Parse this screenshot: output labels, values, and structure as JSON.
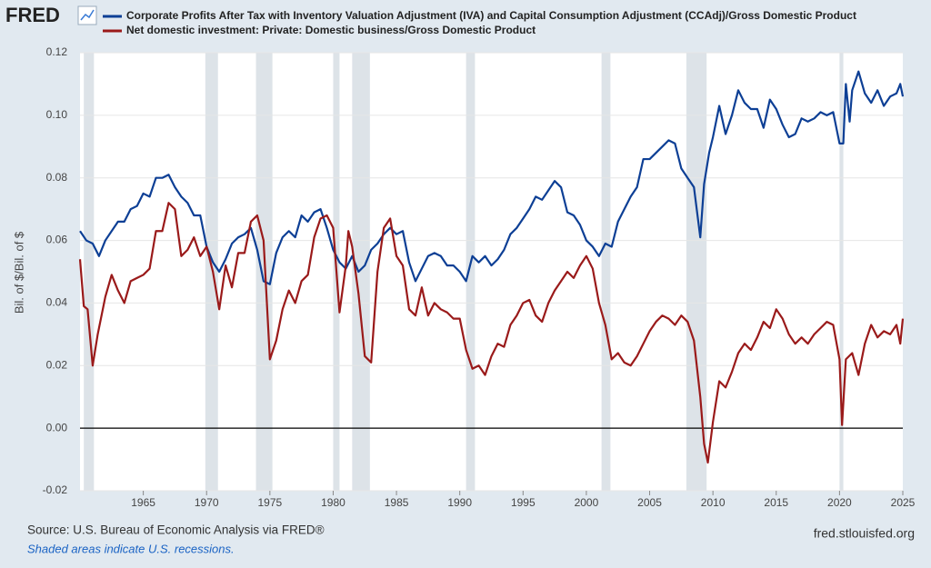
{
  "chart_data": {
    "type": "line",
    "logo": "FRED",
    "y_label": "Bil. of $/Bil. of $",
    "source": "Source: U.S. Bureau of Economic Analysis via FRED®",
    "note": "Shaded areas indicate U.S. recessions.",
    "site": "fred.stlouisfed.org",
    "xlim": [
      1960,
      2025
    ],
    "ylim": [
      -0.02,
      0.12
    ],
    "xticks": [
      1965,
      1970,
      1975,
      1980,
      1985,
      1990,
      1995,
      2000,
      2005,
      2010,
      2015,
      2020,
      2025
    ],
    "yticks": [
      -0.02,
      {
        "value": 0,
        "label": "0.00"
      },
      0.02,
      0.04,
      0.06,
      0.08,
      {
        "value": 0.1,
        "label": "0.10"
      },
      0.12
    ],
    "grid": true,
    "zero_line_color": "#000000",
    "recession_color": "#dde3e8",
    "recessions": [
      [
        1960.3,
        1961.1
      ],
      [
        1969.9,
        1970.9
      ],
      [
        1973.9,
        1975.2
      ],
      [
        1980.0,
        1980.5
      ],
      [
        1981.5,
        1982.9
      ],
      [
        1990.5,
        1991.2
      ],
      [
        2001.2,
        2001.9
      ],
      [
        2007.9,
        2009.5
      ],
      [
        2020.0,
        2020.3
      ]
    ],
    "series": [
      {
        "name": "Corporate Profits After Tax with Inventory Valuation Adjustment (IVA) and Capital Consumption Adjustment (CCAdj)/Gross Domestic Product",
        "color": "#0d3f95",
        "x": [
          1960,
          1960.5,
          1961,
          1961.5,
          1962,
          1963,
          1963.5,
          1964,
          1964.5,
          1965,
          1965.5,
          1966,
          1966.5,
          1967,
          1967.5,
          1968,
          1968.5,
          1969,
          1969.5,
          1970,
          1970.5,
          1971,
          1971.5,
          1972,
          1972.5,
          1973,
          1973.5,
          1974,
          1974.5,
          1975,
          1975.5,
          1976,
          1976.5,
          1977,
          1977.5,
          1978,
          1978.5,
          1979,
          1979.5,
          1980,
          1980.5,
          1981,
          1981.5,
          1982,
          1982.5,
          1983,
          1983.5,
          1984,
          1984.5,
          1985,
          1985.5,
          1986,
          1986.5,
          1987,
          1987.5,
          1988,
          1988.5,
          1989,
          1989.5,
          1990,
          1990.5,
          1991,
          1991.5,
          1992,
          1992.5,
          1993,
          1993.5,
          1994,
          1994.5,
          1995,
          1995.5,
          1996,
          1996.5,
          1997,
          1997.5,
          1998,
          1998.5,
          1999,
          1999.5,
          2000,
          2000.5,
          2001,
          2001.5,
          2002,
          2002.5,
          2003,
          2003.5,
          2004,
          2004.5,
          2005,
          2005.5,
          2006,
          2006.5,
          2007,
          2007.5,
          2008,
          2008.5,
          2009,
          2009.3,
          2009.7,
          2010,
          2010.5,
          2011,
          2011.5,
          2012,
          2012.5,
          2013,
          2013.5,
          2014,
          2014.5,
          2015,
          2015.5,
          2016,
          2016.5,
          2017,
          2017.5,
          2018,
          2018.5,
          2019,
          2019.5,
          2020,
          2020.3,
          2020.5,
          2020.8,
          2021,
          2021.5,
          2022,
          2022.5,
          2023,
          2023.5,
          2024,
          2024.5,
          2024.8,
          2025
        ],
        "values": [
          0.063,
          0.06,
          0.059,
          0.055,
          0.06,
          0.066,
          0.066,
          0.07,
          0.071,
          0.075,
          0.074,
          0.08,
          0.08,
          0.081,
          0.077,
          0.074,
          0.072,
          0.068,
          0.068,
          0.058,
          0.053,
          0.05,
          0.054,
          0.059,
          0.061,
          0.062,
          0.064,
          0.057,
          0.047,
          0.046,
          0.056,
          0.061,
          0.063,
          0.061,
          0.068,
          0.066,
          0.069,
          0.07,
          0.064,
          0.057,
          0.053,
          0.051,
          0.055,
          0.05,
          0.052,
          0.057,
          0.059,
          0.062,
          0.064,
          0.062,
          0.063,
          0.053,
          0.047,
          0.051,
          0.055,
          0.056,
          0.055,
          0.052,
          0.052,
          0.05,
          0.047,
          0.055,
          0.053,
          0.055,
          0.052,
          0.054,
          0.057,
          0.062,
          0.064,
          0.067,
          0.07,
          0.074,
          0.073,
          0.076,
          0.079,
          0.077,
          0.069,
          0.068,
          0.065,
          0.06,
          0.058,
          0.055,
          0.059,
          0.058,
          0.066,
          0.07,
          0.074,
          0.077,
          0.086,
          0.086,
          0.088,
          0.09,
          0.092,
          0.091,
          0.083,
          0.08,
          0.077,
          0.061,
          0.078,
          0.088,
          0.093,
          0.103,
          0.094,
          0.1,
          0.108,
          0.104,
          0.102,
          0.102,
          0.096,
          0.105,
          0.102,
          0.097,
          0.093,
          0.094,
          0.099,
          0.098,
          0.099,
          0.101,
          0.1,
          0.101,
          0.091,
          0.091,
          0.11,
          0.098,
          0.108,
          0.114,
          0.107,
          0.104,
          0.108,
          0.103,
          0.106,
          0.107,
          0.11,
          0.106
        ]
      },
      {
        "name": "Net domestic investment: Private: Domestic business/Gross Domestic Product",
        "color": "#9a1a1a",
        "x": [
          1960,
          1960.3,
          1960.6,
          1961,
          1961.4,
          1962,
          1962.5,
          1963,
          1963.5,
          1964,
          1964.5,
          1965,
          1965.5,
          1966,
          1966.5,
          1967,
          1967.5,
          1968,
          1968.5,
          1969,
          1969.5,
          1970,
          1970.5,
          1971,
          1971.5,
          1972,
          1972.5,
          1973,
          1973.5,
          1974,
          1974.5,
          1975,
          1975.5,
          1976,
          1976.5,
          1977,
          1977.5,
          1978,
          1978.5,
          1979,
          1979.5,
          1980,
          1980.5,
          1981,
          1981.2,
          1981.5,
          1982,
          1982.5,
          1983,
          1983.5,
          1984,
          1984.5,
          1985,
          1985.5,
          1986,
          1986.5,
          1987,
          1987.5,
          1988,
          1988.5,
          1989,
          1989.5,
          1990,
          1990.5,
          1991,
          1991.5,
          1992,
          1992.5,
          1993,
          1993.5,
          1994,
          1994.5,
          1995,
          1995.5,
          1996,
          1996.5,
          1997,
          1997.5,
          1998,
          1998.5,
          1999,
          1999.5,
          2000,
          2000.5,
          2001,
          2001.5,
          2002,
          2002.5,
          2003,
          2003.5,
          2004,
          2004.5,
          2005,
          2005.5,
          2006,
          2006.5,
          2007,
          2007.5,
          2008,
          2008.5,
          2009,
          2009.3,
          2009.6,
          2010,
          2010.5,
          2011,
          2011.5,
          2012,
          2012.5,
          2013,
          2013.5,
          2014,
          2014.5,
          2015,
          2015.5,
          2016,
          2016.5,
          2017,
          2017.5,
          2018,
          2018.5,
          2019,
          2019.5,
          2020,
          2020.2,
          2020.5,
          2021,
          2021.5,
          2022,
          2022.5,
          2023,
          2023.5,
          2024,
          2024.5,
          2024.8,
          2025
        ],
        "values": [
          0.054,
          0.039,
          0.038,
          0.02,
          0.03,
          0.042,
          0.049,
          0.044,
          0.04,
          0.047,
          0.048,
          0.049,
          0.051,
          0.063,
          0.063,
          0.072,
          0.07,
          0.055,
          0.057,
          0.061,
          0.055,
          0.058,
          0.05,
          0.038,
          0.052,
          0.045,
          0.056,
          0.056,
          0.066,
          0.068,
          0.06,
          0.022,
          0.028,
          0.038,
          0.044,
          0.04,
          0.047,
          0.049,
          0.061,
          0.067,
          0.068,
          0.064,
          0.037,
          0.052,
          0.063,
          0.058,
          0.043,
          0.023,
          0.021,
          0.05,
          0.064,
          0.067,
          0.055,
          0.052,
          0.038,
          0.036,
          0.045,
          0.036,
          0.04,
          0.038,
          0.037,
          0.035,
          0.035,
          0.025,
          0.019,
          0.02,
          0.017,
          0.023,
          0.027,
          0.026,
          0.033,
          0.036,
          0.04,
          0.041,
          0.036,
          0.034,
          0.04,
          0.044,
          0.047,
          0.05,
          0.048,
          0.052,
          0.055,
          0.051,
          0.04,
          0.033,
          0.022,
          0.024,
          0.021,
          0.02,
          0.023,
          0.027,
          0.031,
          0.034,
          0.036,
          0.035,
          0.033,
          0.036,
          0.034,
          0.028,
          0.01,
          -0.005,
          -0.011,
          0.002,
          0.015,
          0.013,
          0.018,
          0.024,
          0.027,
          0.025,
          0.029,
          0.034,
          0.032,
          0.038,
          0.035,
          0.03,
          0.027,
          0.029,
          0.027,
          0.03,
          0.032,
          0.034,
          0.033,
          0.022,
          0.001,
          0.022,
          0.024,
          0.017,
          0.027,
          0.033,
          0.029,
          0.031,
          0.03,
          0.033,
          0.027,
          0.035
        ]
      }
    ]
  }
}
